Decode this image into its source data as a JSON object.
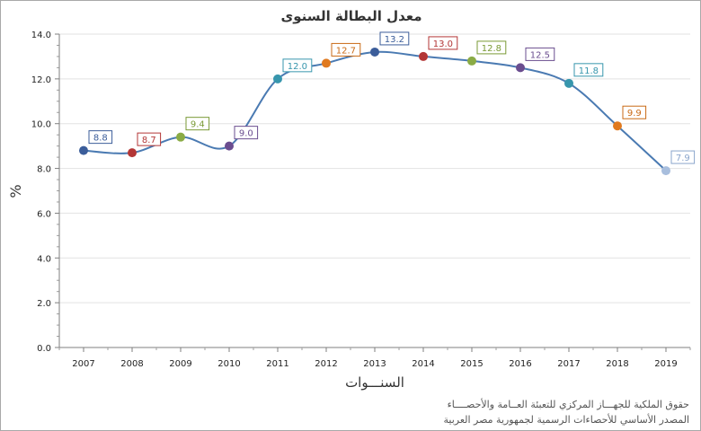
{
  "chart_data": {
    "type": "line",
    "title": "معدل البطالة  السنوى",
    "xlabel": "السنـــوات",
    "ylabel": "%",
    "categories": [
      "2007",
      "2008",
      "2009",
      "2010",
      "2011",
      "2012",
      "2013",
      "2014",
      "2015",
      "2016",
      "2017",
      "2018",
      "2019"
    ],
    "series": [
      {
        "name": "معدل البطالة",
        "values": [
          8.8,
          8.7,
          9.4,
          9.0,
          12.0,
          12.7,
          13.2,
          13.0,
          12.8,
          12.5,
          11.8,
          9.9,
          7.9
        ],
        "value_labels": [
          "8.8",
          "8.7",
          "9.4",
          "9.0",
          "12.0",
          "12.7",
          "13.2",
          "13.0",
          "12.8",
          "12.5",
          "11.8",
          "9.9",
          "7.9"
        ],
        "line_color": "#4a7ab2"
      }
    ],
    "point_colors": [
      "#3b5d9a",
      "#b33636",
      "#8aab45",
      "#6a4d8f",
      "#3796ad",
      "#e07a1f",
      "#3b5d9a",
      "#b33636",
      "#8aab45",
      "#6a4d8f",
      "#3796ad",
      "#e07a1f",
      "#a8bedd"
    ],
    "label_colors": [
      "#3b5d9a",
      "#b33636",
      "#7a9a35",
      "#6a4d8f",
      "#3796ad",
      "#c96a15",
      "#3b5d9a",
      "#b33636",
      "#7a9a35",
      "#6a4d8f",
      "#3796ad",
      "#c96a15",
      "#8aa5cc"
    ],
    "ylim": [
      0,
      14
    ],
    "yticks": [
      "0.0",
      "2.0",
      "4.0",
      "6.0",
      "8.0",
      "10.0",
      "12.0",
      "14.0"
    ],
    "grid": true,
    "legend": "none"
  },
  "footer": {
    "copyright": "حقوق الملكية للجهـــاز المركزي للتعبئة العــامة والأحصــــاء",
    "source": "المصدر الأساسي للأحصاءات الرسمية لجمهورية مصر العربية"
  }
}
